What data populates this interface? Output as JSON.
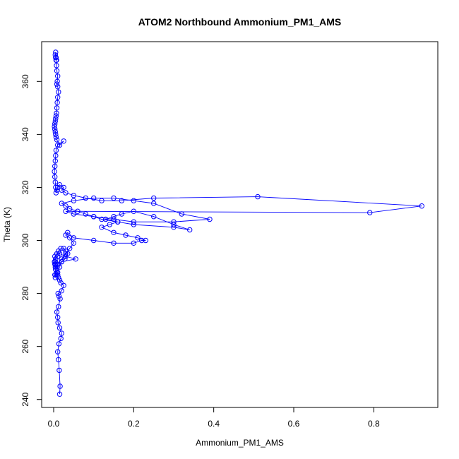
{
  "chart_data": {
    "type": "line",
    "title": "ATOM2 Northbound Ammonium_PM1_AMS",
    "xlabel": "Ammonium_PM1_AMS",
    "ylabel": "Theta (K)",
    "xlim": [
      -0.03,
      0.96
    ],
    "ylim": [
      237,
      375
    ],
    "x_ticks": [
      0,
      0.2,
      0.4,
      0.6,
      0.8
    ],
    "x_tick_labels": [
      "0.0",
      "0.2",
      "0.4",
      "0.6",
      "0.8"
    ],
    "y_ticks": [
      240,
      260,
      280,
      300,
      320,
      340,
      360
    ],
    "y_tick_labels": [
      "240",
      "260",
      "280",
      "300",
      "320",
      "340",
      "360"
    ],
    "grid": false,
    "legend": "none",
    "marker": "open-circle",
    "series": [
      {
        "color": "#0000ff",
        "x": [
          0.015,
          0.016,
          0.014,
          0.012,
          0.01,
          0.013,
          0.018,
          0.02,
          0.015,
          0.011,
          0.01,
          0.008,
          0.012,
          0.016,
          0.013,
          0.011,
          0.02,
          0.025,
          0.018,
          0.015,
          0.012,
          0.01,
          0.008,
          0.005,
          0.004,
          0.003,
          0.002,
          0.005,
          0.01,
          0.015,
          0.03,
          0.055,
          0.02,
          0.01,
          0.006,
          0.005,
          0.004,
          0.003,
          0.008,
          0.012,
          0.018,
          0.025,
          0.03,
          0.035,
          0.028,
          0.02,
          0.015,
          0.01,
          0.006,
          0.004,
          0.003,
          0.005,
          0.01,
          0.02,
          0.03,
          0.04,
          0.05,
          0.04,
          0.03,
          0.035,
          0.05,
          0.1,
          0.15,
          0.2,
          0.22,
          0.23,
          0.21,
          0.18,
          0.15,
          0.12,
          0.14,
          0.16,
          0.13,
          0.15,
          0.17,
          0.2,
          0.25,
          0.3,
          0.34,
          0.3,
          0.2,
          0.16,
          0.12,
          0.1,
          0.08,
          0.06,
          0.04,
          0.03,
          0.02,
          0.05,
          0.1,
          0.15,
          0.2,
          0.25,
          0.32,
          0.39,
          0.3,
          0.2,
          0.15,
          0.1,
          0.05,
          0.03,
          0.79,
          0.92,
          0.51,
          0.25,
          0.17,
          0.12,
          0.08,
          0.05,
          0.03,
          0.02,
          0.025,
          0.015,
          0.01,
          0.008,
          0.006,
          0.005,
          0.004,
          0.003,
          0.002,
          0.003,
          0.004,
          0.005,
          0.006,
          0.01,
          0.025,
          0.015,
          0.008,
          0.006,
          0.005,
          0.004,
          0.003,
          0.002,
          0.003,
          0.004,
          0.005,
          0.006,
          0.007,
          0.008,
          0.009,
          0.01,
          0.012,
          0.01,
          0.008,
          0.009,
          0.01,
          0.008,
          0.007,
          0.006,
          0.005,
          0.004,
          0.005,
          0.006,
          0.007
        ],
        "y": [
          242,
          245,
          251,
          255,
          258,
          261,
          263,
          265,
          267,
          269,
          271,
          273,
          275,
          278,
          279,
          280,
          281,
          283,
          284,
          285,
          286,
          287,
          288,
          289,
          290,
          291,
          292,
          293,
          294,
          295,
          294,
          293,
          292,
          291,
          290,
          291,
          292,
          294,
          295,
          296,
          297,
          297,
          296,
          295,
          293,
          292,
          290,
          288,
          287,
          286,
          287,
          289,
          291,
          293,
          295,
          297,
          299,
          301,
          302,
          303,
          301,
          300,
          299,
          299,
          300,
          300,
          301,
          302,
          303,
          305,
          306,
          307,
          308,
          309,
          310,
          311,
          309,
          306,
          304,
          305,
          306,
          307,
          308,
          309,
          310,
          311,
          312,
          313,
          314,
          315,
          316,
          316,
          315,
          314,
          310,
          308,
          307,
          307,
          308,
          309,
          310,
          311,
          310.5,
          313,
          316.5,
          316,
          315,
          315,
          316,
          317,
          318,
          319,
          320,
          321,
          320,
          319,
          318,
          320,
          322,
          324,
          326,
          328,
          330,
          332,
          334,
          336,
          337.5,
          336,
          338,
          339,
          340,
          341,
          342,
          343,
          344,
          345,
          346,
          347,
          348,
          350,
          352,
          354,
          356,
          358,
          359,
          360,
          362,
          364,
          366,
          368,
          369,
          370,
          371,
          369,
          368
        ]
      }
    ]
  }
}
